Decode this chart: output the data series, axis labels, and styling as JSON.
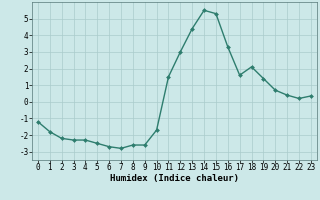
{
  "x": [
    0,
    1,
    2,
    3,
    4,
    5,
    6,
    7,
    8,
    9,
    10,
    11,
    12,
    13,
    14,
    15,
    16,
    17,
    18,
    19,
    20,
    21,
    22,
    23
  ],
  "y": [
    -1.2,
    -1.8,
    -2.2,
    -2.3,
    -2.3,
    -2.5,
    -2.7,
    -2.8,
    -2.6,
    -2.6,
    -1.7,
    1.5,
    3.0,
    4.4,
    5.5,
    5.3,
    3.3,
    1.6,
    2.1,
    1.4,
    0.7,
    0.4,
    0.2,
    0.35
  ],
  "xlabel": "Humidex (Indice chaleur)",
  "xlim": [
    -0.5,
    23.5
  ],
  "ylim": [
    -3.5,
    6.0
  ],
  "yticks": [
    -3,
    -2,
    -1,
    0,
    1,
    2,
    3,
    4,
    5
  ],
  "xticks": [
    0,
    1,
    2,
    3,
    4,
    5,
    6,
    7,
    8,
    9,
    10,
    11,
    12,
    13,
    14,
    15,
    16,
    17,
    18,
    19,
    20,
    21,
    22,
    23
  ],
  "line_color": "#2e7d6e",
  "marker_color": "#2e7d6e",
  "bg_color": "#cce8e8",
  "grid_color": "#aacccc",
  "tick_fontsize": 5.5,
  "label_fontsize": 6.5,
  "marker": "D",
  "markersize": 2.0,
  "linewidth": 1.0
}
